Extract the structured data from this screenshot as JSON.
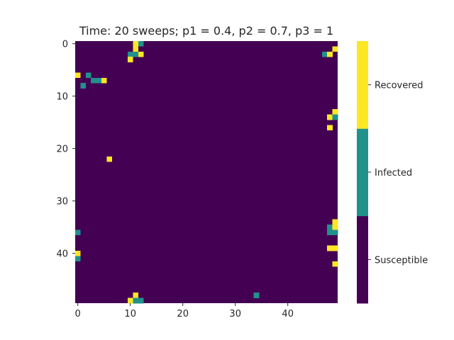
{
  "chart_data": {
    "type": "heatmap",
    "title": "Time: 20 sweeps; p1 = 0.4, p2 = 0.7, p3 = 1",
    "grid_rows": 50,
    "grid_cols": 50,
    "x_ticks": [
      0,
      10,
      20,
      30,
      40
    ],
    "y_ticks": [
      0,
      10,
      20,
      30,
      40
    ],
    "states": [
      {
        "value": 0,
        "label": "Susceptible",
        "color": "#440154"
      },
      {
        "value": 1,
        "label": "Infected",
        "color": "#21918c"
      },
      {
        "value": 2,
        "label": "Recovered",
        "color": "#fde725"
      }
    ],
    "background_state": "Susceptible",
    "cells": [
      {
        "row": 0,
        "col": 11,
        "state": "Recovered"
      },
      {
        "row": 0,
        "col": 12,
        "state": "Infected"
      },
      {
        "row": 1,
        "col": 11,
        "state": "Recovered"
      },
      {
        "row": 1,
        "col": 49,
        "state": "Recovered"
      },
      {
        "row": 2,
        "col": 10,
        "state": "Infected"
      },
      {
        "row": 2,
        "col": 11,
        "state": "Infected"
      },
      {
        "row": 2,
        "col": 12,
        "state": "Recovered"
      },
      {
        "row": 2,
        "col": 47,
        "state": "Infected"
      },
      {
        "row": 2,
        "col": 48,
        "state": "Recovered"
      },
      {
        "row": 3,
        "col": 10,
        "state": "Recovered"
      },
      {
        "row": 6,
        "col": 0,
        "state": "Recovered"
      },
      {
        "row": 6,
        "col": 2,
        "state": "Infected"
      },
      {
        "row": 7,
        "col": 3,
        "state": "Infected"
      },
      {
        "row": 7,
        "col": 4,
        "state": "Infected"
      },
      {
        "row": 7,
        "col": 5,
        "state": "Recovered"
      },
      {
        "row": 8,
        "col": 1,
        "state": "Infected"
      },
      {
        "row": 13,
        "col": 49,
        "state": "Recovered"
      },
      {
        "row": 14,
        "col": 48,
        "state": "Recovered"
      },
      {
        "row": 14,
        "col": 49,
        "state": "Infected"
      },
      {
        "row": 16,
        "col": 48,
        "state": "Recovered"
      },
      {
        "row": 22,
        "col": 6,
        "state": "Recovered"
      },
      {
        "row": 34,
        "col": 49,
        "state": "Recovered"
      },
      {
        "row": 35,
        "col": 48,
        "state": "Infected"
      },
      {
        "row": 35,
        "col": 49,
        "state": "Recovered"
      },
      {
        "row": 36,
        "col": 0,
        "state": "Infected"
      },
      {
        "row": 36,
        "col": 48,
        "state": "Infected"
      },
      {
        "row": 36,
        "col": 49,
        "state": "Infected"
      },
      {
        "row": 39,
        "col": 48,
        "state": "Recovered"
      },
      {
        "row": 39,
        "col": 49,
        "state": "Recovered"
      },
      {
        "row": 40,
        "col": 0,
        "state": "Recovered"
      },
      {
        "row": 41,
        "col": 0,
        "state": "Infected"
      },
      {
        "row": 42,
        "col": 49,
        "state": "Recovered"
      },
      {
        "row": 48,
        "col": 11,
        "state": "Recovered"
      },
      {
        "row": 48,
        "col": 34,
        "state": "Infected"
      },
      {
        "row": 49,
        "col": 10,
        "state": "Recovered"
      },
      {
        "row": 49,
        "col": 11,
        "state": "Infected"
      },
      {
        "row": 49,
        "col": 12,
        "state": "Infected"
      }
    ]
  }
}
